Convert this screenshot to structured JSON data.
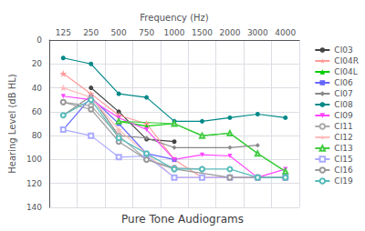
{
  "chart_data": {
    "type": "line",
    "title": "Pure Tone Audiograms",
    "xlabel": "Frequency (Hz)",
    "ylabel": "Hearing Level (dB HL)",
    "categories": [
      125,
      250,
      500,
      750,
      1000,
      1500,
      2000,
      3000,
      4000
    ],
    "ylim": [
      140,
      0
    ],
    "yticks": [
      0,
      20,
      40,
      60,
      80,
      100,
      120,
      140
    ],
    "grid": true,
    "legend": "right",
    "series": [
      {
        "name": "CI03",
        "color": "#444444",
        "marker": "circle",
        "x": [
          250,
          500,
          750,
          1000
        ],
        "values": [
          40,
          60,
          83,
          85
        ]
      },
      {
        "name": "CI04R",
        "color": "#ff9999",
        "marker": "star",
        "x": [
          125,
          250,
          500,
          750,
          1000,
          1500,
          2000,
          3000,
          4000
        ],
        "values": [
          28,
          45,
          63,
          70,
          100,
          115,
          115,
          115,
          115
        ]
      },
      {
        "name": "CI04L",
        "color": "#00cc00",
        "marker": "triangle",
        "x": [
          500,
          750,
          1000,
          1500,
          2000,
          3000,
          4000
        ],
        "values": [
          68,
          72,
          70,
          80,
          78,
          95,
          110
        ]
      },
      {
        "name": "CI06",
        "color": "#6666ff",
        "marker": "square",
        "x": [
          125,
          250,
          500,
          750,
          1000
        ],
        "values": [
          75,
          48,
          70,
          95,
          100
        ]
      },
      {
        "name": "CI07",
        "color": "#888888",
        "marker": "diamond",
        "x": [
          125,
          250,
          500,
          750,
          1000,
          2000,
          3000
        ],
        "values": [
          63,
          47,
          80,
          82,
          90,
          90,
          88
        ]
      },
      {
        "name": "CI08",
        "color": "#008888",
        "marker": "circle",
        "x": [
          125,
          250,
          500,
          750,
          1000,
          1500,
          2000,
          3000,
          4000
        ],
        "values": [
          15,
          20,
          45,
          48,
          68,
          68,
          65,
          62,
          65
        ]
      },
      {
        "name": "CI09",
        "color": "#ff44ff",
        "marker": "triangle-down",
        "x": [
          125,
          250,
          500,
          750,
          1000,
          1500,
          2000,
          3000,
          4000
        ],
        "values": [
          47,
          50,
          65,
          75,
          100,
          96,
          97,
          115,
          108
        ]
      },
      {
        "name": "CI11",
        "color": "#aaaaaa",
        "marker": "open-circle",
        "x": [
          125,
          250,
          500,
          750,
          1000,
          1500
        ],
        "values": [
          52,
          55,
          80,
          100,
          107,
          108
        ]
      },
      {
        "name": "CI12",
        "color": "#ffbbbb",
        "marker": "star",
        "x": [
          125,
          250,
          500,
          750,
          1000,
          1500,
          2000,
          3000,
          4000
        ],
        "values": [
          40,
          48,
          75,
          95,
          115,
          115,
          115,
          115,
          115
        ]
      },
      {
        "name": "CI13",
        "color": "#44cc44",
        "marker": "open-triangle",
        "x": [
          500,
          1000,
          1500,
          2000,
          3000,
          4000
        ],
        "values": [
          68,
          70,
          80,
          78,
          95,
          110
        ]
      },
      {
        "name": "CI15",
        "color": "#aaaaff",
        "marker": "open-square",
        "x": [
          125,
          250,
          500,
          750,
          1000,
          1500,
          2000,
          3000,
          4000
        ],
        "values": [
          75,
          80,
          98,
          97,
          115,
          115,
          115,
          115,
          115
        ]
      },
      {
        "name": "CI16",
        "color": "#999999",
        "marker": "open-circle",
        "x": [
          125,
          250,
          500,
          750,
          1000,
          2000,
          3000,
          4000
        ],
        "values": [
          52,
          58,
          85,
          100,
          108,
          115,
          115,
          115
        ]
      },
      {
        "name": "CI19",
        "color": "#55bbbb",
        "marker": "open-circle",
        "x": [
          125,
          250,
          500,
          750,
          1000,
          1500,
          2000,
          3000,
          4000
        ],
        "values": [
          63,
          50,
          82,
          95,
          108,
          108,
          108,
          115,
          115
        ]
      }
    ]
  }
}
